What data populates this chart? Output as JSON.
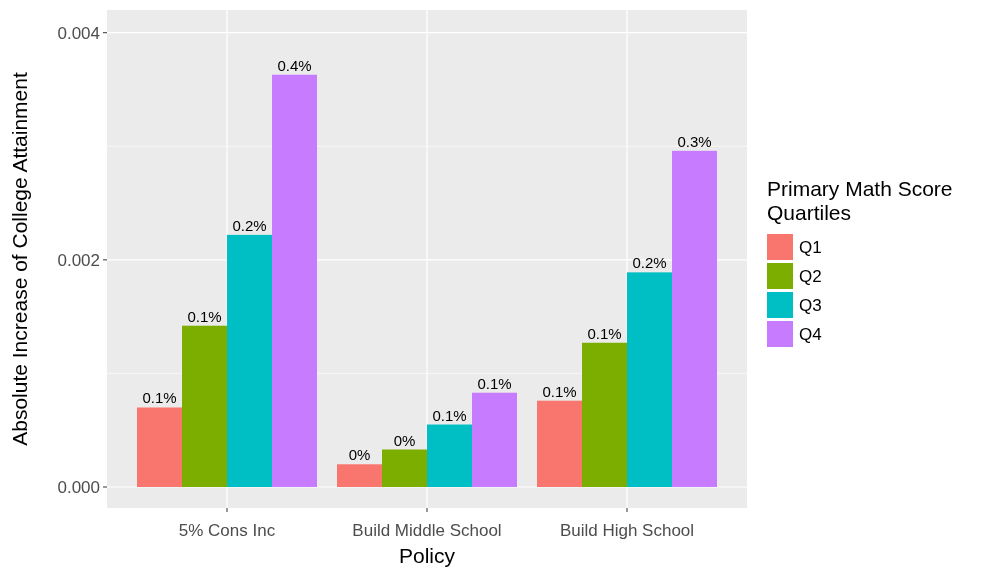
{
  "chart_data": {
    "type": "bar",
    "xlabel": "Policy",
    "ylabel": "Absolute Increase of College Attainment",
    "legend_title": "Primary Math Score Quartiles",
    "categories": [
      "5% Cons Inc",
      "Build Middle School",
      "Build High School"
    ],
    "series": [
      {
        "name": "Q1",
        "color": "#f8766d",
        "values": [
          0.0007,
          0.0002,
          0.00076
        ],
        "value_labels": [
          "0.1%",
          "0%",
          "0.1%"
        ]
      },
      {
        "name": "Q2",
        "color": "#7cae00",
        "values": [
          0.00142,
          0.00033,
          0.00127
        ],
        "value_labels": [
          "0.1%",
          "0%",
          "0.1%"
        ]
      },
      {
        "name": "Q3",
        "color": "#00bfc4",
        "values": [
          0.00222,
          0.00055,
          0.00189
        ],
        "value_labels": [
          "0.2%",
          "0.1%",
          "0.2%"
        ]
      },
      {
        "name": "Q4",
        "color": "#c77cff",
        "values": [
          0.00363,
          0.00083,
          0.00296
        ],
        "value_labels": [
          "0.4%",
          "0.1%",
          "0.3%"
        ]
      }
    ],
    "ylim": [
      -0.000185,
      0.0042
    ],
    "yticks": [
      {
        "value": 0,
        "label": "0.000"
      },
      {
        "value": 0.001,
        "label": null
      },
      {
        "value": 0.002,
        "label": "0.002"
      },
      {
        "value": 0.003,
        "label": null
      },
      {
        "value": 0.004,
        "label": "0.004"
      }
    ],
    "grid": true,
    "legend": "right"
  }
}
